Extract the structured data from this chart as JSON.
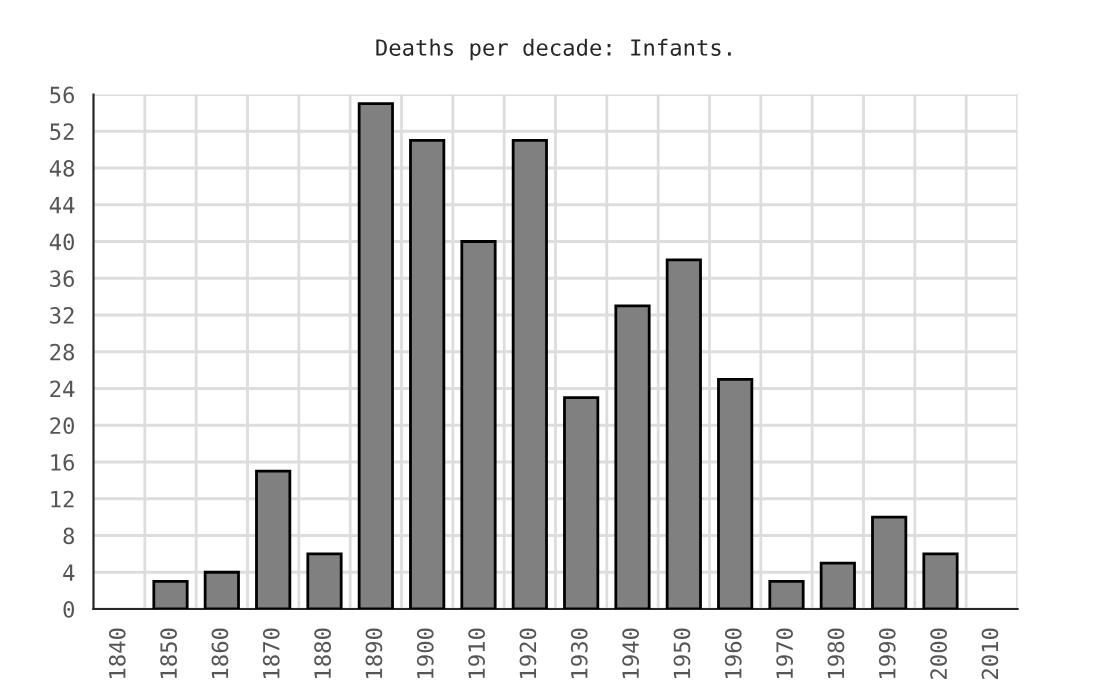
{
  "chart_data": {
    "type": "bar",
    "title": "Deaths per decade: Infants.",
    "categories": [
      "1840",
      "1850",
      "1860",
      "1870",
      "1880",
      "1890",
      "1900",
      "1910",
      "1920",
      "1930",
      "1940",
      "1950",
      "1960",
      "1970",
      "1980",
      "1990",
      "2000",
      "2010"
    ],
    "values": [
      0,
      3,
      4,
      15,
      6,
      55,
      51,
      40,
      51,
      23,
      33,
      38,
      25,
      3,
      5,
      10,
      6,
      0
    ],
    "color": "#808080",
    "ylim": [
      0,
      56
    ],
    "yticks": [
      0,
      4,
      8,
      12,
      16,
      20,
      24,
      28,
      32,
      36,
      40,
      44,
      48,
      52,
      56
    ],
    "grid": true
  }
}
